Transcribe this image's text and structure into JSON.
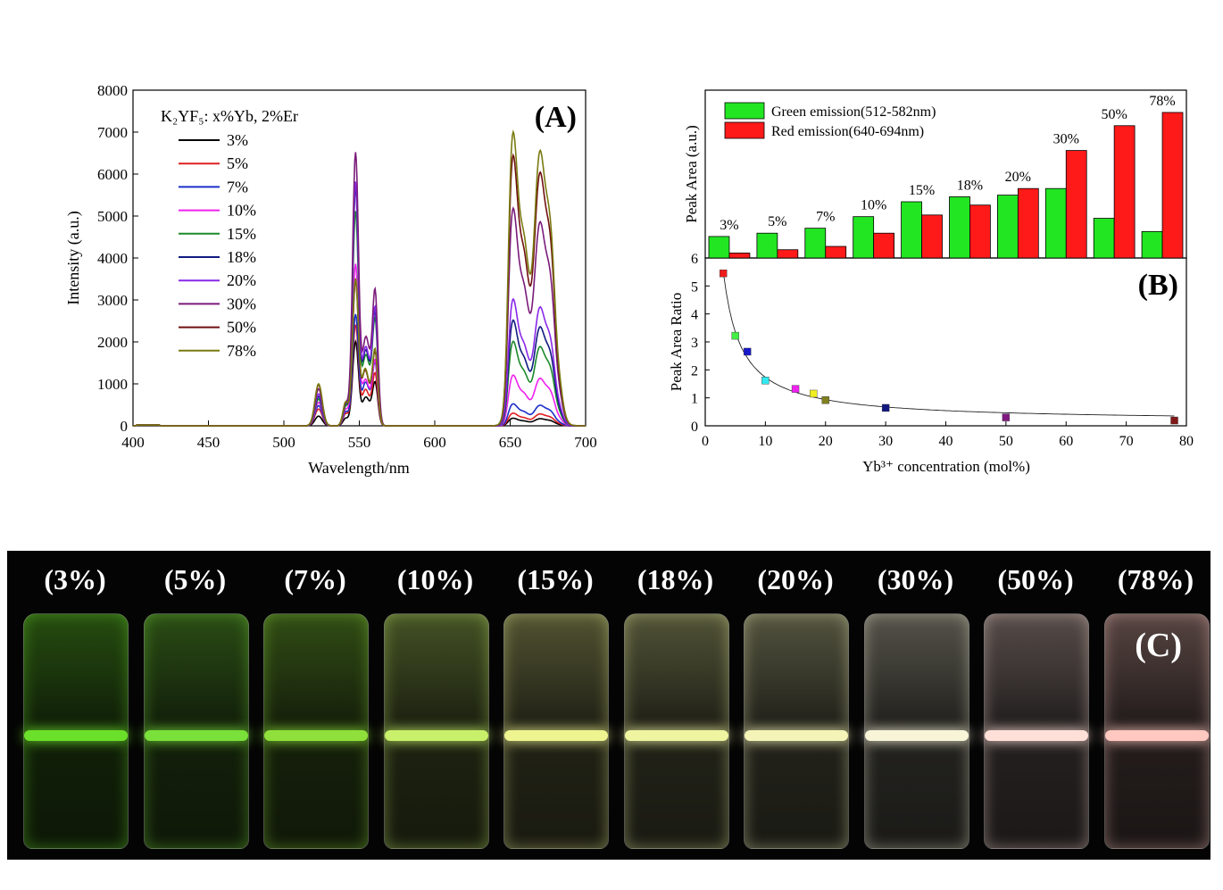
{
  "panelA": {
    "tag": "(A)",
    "legend_title": "K₂YF₅: x%Yb, 2%Er",
    "xlabel": "Wavelength/nm",
    "ylabel": "Intensity (a.u.)"
  },
  "panelB": {
    "tag": "(B)",
    "top_ylabel": "Peak Area (a.u.)",
    "top_legend": [
      "Green emission(512-582nm)",
      "Red emission(640-694nm)"
    ],
    "bottom_ylabel": "Peak Area Ratio",
    "xlabel": "Yb³⁺ concentration (mol%)",
    "top_axis_tick": "6"
  },
  "panelC": {
    "tag": "(C)",
    "labels": [
      "(3%)",
      "(5%)",
      "(7%)",
      "(10%)",
      "(15%)",
      "(18%)",
      "(20%)",
      "(30%)",
      "(50%)",
      "(78%)"
    ],
    "vial_colors": [
      "#6be02a",
      "#7ae03a",
      "#8fe03a",
      "#c8f06a",
      "#eef490",
      "#eef4a0",
      "#f4f4b8",
      "#f8f4d8",
      "#ffe0d8",
      "#ffc8c0"
    ]
  },
  "chart_data": [
    {
      "type": "line",
      "title": "",
      "xlabel": "Wavelength/nm",
      "ylabel": "Intensity (a.u.)",
      "xlim": [
        400,
        700
      ],
      "ylim": [
        0,
        8000
      ],
      "x_ticks": [
        400,
        450,
        500,
        550,
        600,
        650,
        700
      ],
      "y_ticks": [
        0,
        1000,
        2000,
        3000,
        4000,
        5000,
        6000,
        7000,
        8000
      ],
      "legend_title": "K₂YF₅: x%Yb, 2%Er",
      "series": [
        {
          "name": "3%",
          "color": "#000000",
          "peaks": [
            230,
            320,
            2000,
            1000,
            180
          ]
        },
        {
          "name": "5%",
          "color": "#e02020",
          "peaks": [
            400,
            520,
            2400,
            1200,
            300
          ]
        },
        {
          "name": "7%",
          "color": "#1c30c8",
          "peaks": [
            480,
            600,
            2650,
            1450,
            520
          ]
        },
        {
          "name": "10%",
          "color": "#f020f0",
          "peaks": [
            560,
            700,
            3850,
            1500,
            1200
          ]
        },
        {
          "name": "15%",
          "color": "#1a8a2a",
          "peaks": [
            640,
            820,
            5100,
            2450,
            2000
          ]
        },
        {
          "name": "18%",
          "color": "#101a80",
          "peaks": [
            700,
            900,
            5650,
            2600,
            2500
          ]
        },
        {
          "name": "20%",
          "color": "#8a28e8",
          "peaks": [
            760,
            960,
            5800,
            2700,
            3000
          ]
        },
        {
          "name": "30%",
          "color": "#7a1a7a",
          "peaks": [
            880,
            980,
            6500,
            3100,
            5150
          ]
        },
        {
          "name": "50%",
          "color": "#701010",
          "peaks": [
            980,
            1010,
            3450,
            1700,
            6400
          ]
        },
        {
          "name": "78%",
          "color": "#7a7a10",
          "peaks": [
            1000,
            1020,
            3500,
            1750,
            6950
          ]
        }
      ]
    },
    {
      "type": "bar",
      "ylabel": "Peak Area (a.u.)",
      "categories": [
        "3%",
        "5%",
        "7%",
        "10%",
        "15%",
        "18%",
        "20%",
        "30%",
        "50%",
        "78%"
      ],
      "series": [
        {
          "name": "Green emission(512-582nm)",
          "color": "#22e622",
          "values": [
            13,
            15,
            18,
            25,
            34,
            37,
            38,
            42,
            24,
            16
          ]
        },
        {
          "name": "Red emission(640-694nm)",
          "color": "#ff1a1a",
          "values": [
            3,
            5,
            7,
            15,
            26,
            32,
            42,
            65,
            80,
            88
          ]
        }
      ]
    },
    {
      "type": "scatter",
      "xlabel": "Yb³⁺ concentration (mol%)",
      "ylabel": "Peak Area Ratio",
      "xlim": [
        0,
        80
      ],
      "ylim": [
        0,
        6
      ],
      "x_ticks": [
        0,
        10,
        20,
        30,
        40,
        50,
        60,
        70,
        80
      ],
      "y_ticks": [
        0,
        1,
        2,
        3,
        4,
        5
      ],
      "points": [
        {
          "x": 3,
          "y": 5.45,
          "color": "#ee1c1c"
        },
        {
          "x": 5,
          "y": 3.22,
          "color": "#44ee44"
        },
        {
          "x": 7,
          "y": 2.65,
          "color": "#1818cc"
        },
        {
          "x": 10,
          "y": 1.62,
          "color": "#33e8ee"
        },
        {
          "x": 15,
          "y": 1.32,
          "color": "#ee22ee"
        },
        {
          "x": 18,
          "y": 1.15,
          "color": "#f0ee22"
        },
        {
          "x": 20,
          "y": 0.92,
          "color": "#808020"
        },
        {
          "x": 30,
          "y": 0.64,
          "color": "#101880"
        },
        {
          "x": 50,
          "y": 0.3,
          "color": "#801a80"
        },
        {
          "x": 78,
          "y": 0.19,
          "color": "#801818"
        }
      ]
    }
  ]
}
